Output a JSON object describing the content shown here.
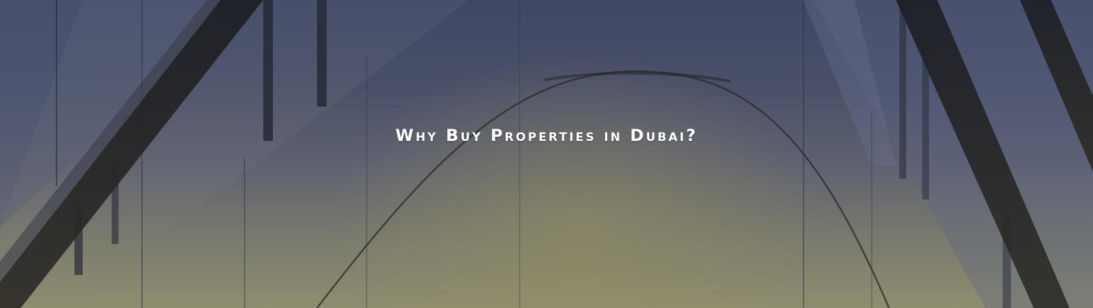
{
  "hero": {
    "title": "Why Buy Properties in Dubai?"
  },
  "colors": {
    "sky_top": "#3f4763",
    "glow": "#8f8d6f",
    "structure": "#1e2026",
    "title_text": "#ffffff"
  }
}
